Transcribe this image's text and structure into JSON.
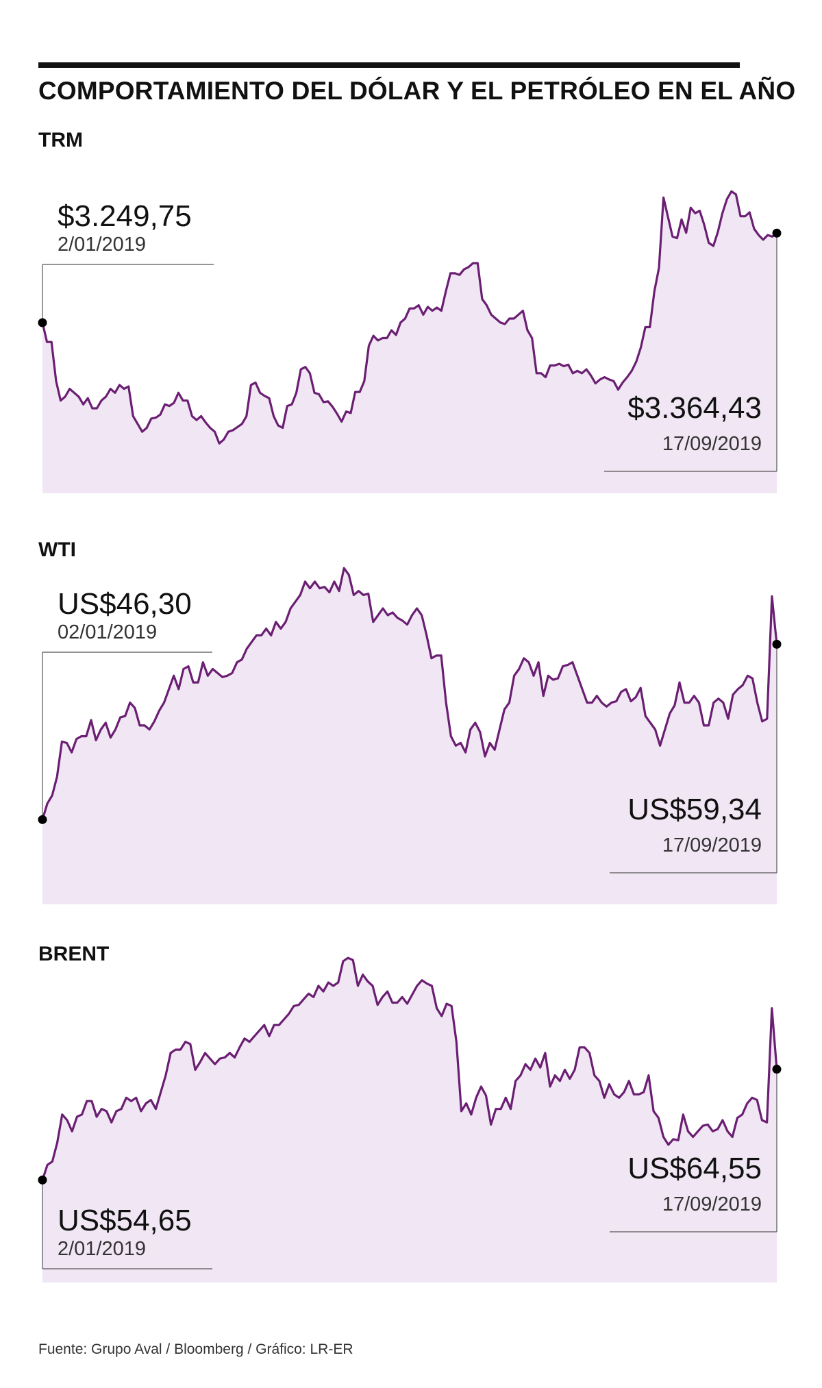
{
  "title": "COMPORTAMIENTO DEL DÓLAR Y EL PETRÓLEO EN EL AÑO",
  "source": "Fuente: Grupo Aval / Bloomberg / Gráfico: LR-ER",
  "colors": {
    "line": "#6b1f73",
    "fill": "#f1e6f4",
    "text": "#111111",
    "frame": "#555555"
  },
  "chart_data": [
    {
      "type": "area",
      "title": "TRM",
      "x_range": [
        "2/01/2019",
        "17/09/2019"
      ],
      "ylim": [
        3040,
        3470
      ],
      "start": {
        "value": "$3.249,75",
        "date": "2/01/2019"
      },
      "end": {
        "value": "$3.364,43",
        "date": "17/09/2019"
      },
      "values": [
        3249.75,
        3225,
        3225,
        3175,
        3150,
        3155,
        3165,
        3160,
        3155,
        3145,
        3153,
        3140,
        3140,
        3150,
        3155,
        3165,
        3160,
        3170,
        3165,
        3168,
        3130,
        3120,
        3110,
        3115,
        3127,
        3128,
        3132,
        3145,
        3143,
        3147,
        3160,
        3150,
        3150,
        3130,
        3125,
        3130,
        3122,
        3115,
        3110,
        3095,
        3100,
        3110,
        3112,
        3116,
        3120,
        3130,
        3170,
        3173,
        3160,
        3156,
        3153,
        3130,
        3118,
        3115,
        3143,
        3145,
        3160,
        3190,
        3193,
        3185,
        3160,
        3158,
        3148,
        3149,
        3142,
        3133,
        3123,
        3136,
        3134,
        3161,
        3161,
        3175,
        3220,
        3233,
        3227,
        3230,
        3230,
        3240,
        3234,
        3250,
        3255,
        3268,
        3268,
        3272,
        3260,
        3270,
        3265,
        3269,
        3265,
        3290,
        3313,
        3313,
        3311,
        3318,
        3321,
        3326,
        3326,
        3280,
        3272,
        3260,
        3255,
        3250,
        3248,
        3255,
        3255,
        3260,
        3265,
        3240,
        3230,
        3185,
        3185,
        3180,
        3195,
        3195,
        3197,
        3194,
        3196,
        3185,
        3188,
        3185,
        3190,
        3182,
        3172,
        3177,
        3180,
        3177,
        3175,
        3164,
        3173,
        3180,
        3188,
        3200,
        3218,
        3244,
        3244,
        3290,
        3320,
        3410,
        3385,
        3360,
        3358,
        3382,
        3365,
        3397,
        3390,
        3393,
        3375,
        3352,
        3348,
        3366,
        3390,
        3408,
        3418,
        3414,
        3386,
        3386,
        3391,
        3370,
        3362,
        3356,
        3362,
        3360,
        3364.43
      ]
    },
    {
      "type": "area",
      "title": "WTI",
      "x_range": [
        "02/01/2019",
        "17/09/2019"
      ],
      "ylim": [
        40,
        67
      ],
      "start": {
        "value": "US$46,30",
        "date": "02/01/2019"
      },
      "end": {
        "value": "US$59,34",
        "date": "17/09/2019"
      },
      "values": [
        46.3,
        47.5,
        48.1,
        49.5,
        52.1,
        52.0,
        51.3,
        52.3,
        52.5,
        52.5,
        53.7,
        52.2,
        53.0,
        53.5,
        52.4,
        53.0,
        53.9,
        54.0,
        55.0,
        54.6,
        53.3,
        53.3,
        53.0,
        53.6,
        54.4,
        55.0,
        56.0,
        57.0,
        56.0,
        57.5,
        57.7,
        56.5,
        56.5,
        58.0,
        57.0,
        57.5,
        57.2,
        56.9,
        57.0,
        57.2,
        58.0,
        58.2,
        59.0,
        59.5,
        60.0,
        60.0,
        60.5,
        60.0,
        61.0,
        60.5,
        61.0,
        62.0,
        62.5,
        63.0,
        64.0,
        63.5,
        64.0,
        63.5,
        63.6,
        63.2,
        64.0,
        63.3,
        65.0,
        64.5,
        63.0,
        63.3,
        63.0,
        63.1,
        61.0,
        61.5,
        62.0,
        61.5,
        61.7,
        61.3,
        61.1,
        60.8,
        61.5,
        62.0,
        61.5,
        60.0,
        58.3,
        58.5,
        58.5,
        55.0,
        52.5,
        51.8,
        52.0,
        51.3,
        53.0,
        53.5,
        52.8,
        51.0,
        52.0,
        51.5,
        53.0,
        54.5,
        55.0,
        57.0,
        57.5,
        58.3,
        58.0,
        57.0,
        58.0,
        55.5,
        57.0,
        56.7,
        56.8,
        57.7,
        57.8,
        58.0,
        57.0,
        56.0,
        55.0,
        55.0,
        55.5,
        55.0,
        54.7,
        55.0,
        55.1,
        55.8,
        56.0,
        55.1,
        55.4,
        56.1,
        54.0,
        53.5,
        53.0,
        51.8,
        53.0,
        54.2,
        54.8,
        56.5,
        55.0,
        55.0,
        55.5,
        55.0,
        53.3,
        53.3,
        55.0,
        55.3,
        55.0,
        53.8,
        55.6,
        56.0,
        56.3,
        57.0,
        56.8,
        55.0,
        53.6,
        53.8,
        62.9,
        59.34
      ]
    },
    {
      "type": "area",
      "title": "BRENT",
      "x_range": [
        "2/01/2019",
        "17/09/2019"
      ],
      "ylim": [
        45,
        75
      ],
      "start": {
        "value": "US$54,65",
        "date": "2/01/2019"
      },
      "end": {
        "value": "US$64,55",
        "date": "17/09/2019"
      },
      "values": [
        54.65,
        56.0,
        56.3,
        58.0,
        60.5,
        60.0,
        59.0,
        60.3,
        60.5,
        61.7,
        61.7,
        60.3,
        61.0,
        60.8,
        59.8,
        60.8,
        61.0,
        62.0,
        61.7,
        62.0,
        60.8,
        61.5,
        61.8,
        61.0,
        62.5,
        64.0,
        66.0,
        66.3,
        66.3,
        67.0,
        66.8,
        64.5,
        65.2,
        66.0,
        65.5,
        65.0,
        65.5,
        65.6,
        66.0,
        65.6,
        66.5,
        67.3,
        67.0,
        67.5,
        68.0,
        68.5,
        67.5,
        68.5,
        68.5,
        69.0,
        69.5,
        70.2,
        70.3,
        70.8,
        71.3,
        71.0,
        72.0,
        71.5,
        72.3,
        72.0,
        72.3,
        74.2,
        74.5,
        74.3,
        72.0,
        73.0,
        72.4,
        72.0,
        70.3,
        71.0,
        71.5,
        70.5,
        70.5,
        71.0,
        70.4,
        71.2,
        72.0,
        72.5,
        72.2,
        72.0,
        70.0,
        69.3,
        70.4,
        70.2,
        67.0,
        60.8,
        61.5,
        60.5,
        62.0,
        63.0,
        62.2,
        59.6,
        61.0,
        61.0,
        62.0,
        61.0,
        63.5,
        64.0,
        65.0,
        64.5,
        65.5,
        64.7,
        66.0,
        63.0,
        64.0,
        63.5,
        64.5,
        63.7,
        64.5,
        66.5,
        66.5,
        66.0,
        64.0,
        63.5,
        62.0,
        63.2,
        62.3,
        62.0,
        62.5,
        63.5,
        62.3,
        62.3,
        62.5,
        64.0,
        60.8,
        60.2,
        58.5,
        57.8,
        58.3,
        58.2,
        60.5,
        59.0,
        58.5,
        59.0,
        59.5,
        59.6,
        59.0,
        59.2,
        60.0,
        59.0,
        58.5,
        60.2,
        60.5,
        61.5,
        62.0,
        61.8,
        60.0,
        59.8,
        70.0,
        64.55
      ]
    }
  ]
}
